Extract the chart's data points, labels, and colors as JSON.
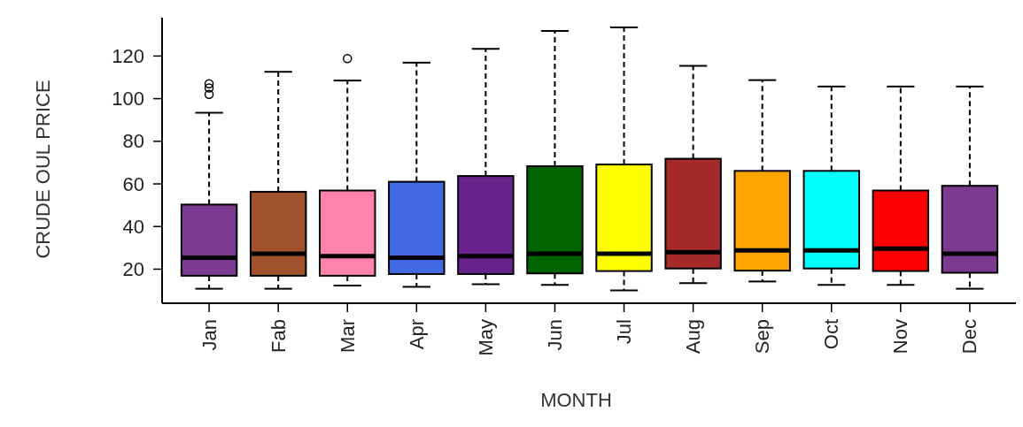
{
  "chart_data": {
    "type": "box",
    "xlabel": "MONTH",
    "ylabel": "CRUDE OUL PRICE",
    "categories": [
      "Jan",
      "Fab",
      "Mar",
      "Apr",
      "May",
      "Jun",
      "Jul",
      "Aug",
      "Sep",
      "Oct",
      "Nov",
      "Dec"
    ],
    "colors": [
      "#7b3a8f",
      "#a0522d",
      "#ff82ab",
      "#4169e1",
      "#68228b",
      "#006400",
      "#ffff00",
      "#a52a2a",
      "#ffa500",
      "#00ffff",
      "#ff0000",
      "#7b3a8f"
    ],
    "boxes": [
      {
        "low": 10.8,
        "q1": 16.9,
        "median": 25.4,
        "q3": 50.3,
        "high": 93.4,
        "outliers": [
          107,
          105,
          102
        ]
      },
      {
        "low": 10.8,
        "q1": 16.9,
        "median": 27.2,
        "q3": 56.3,
        "high": 112.6
      },
      {
        "low": 12.3,
        "q1": 16.9,
        "median": 26.1,
        "q3": 56.9,
        "high": 108.5,
        "outliers": [
          118.8
        ]
      },
      {
        "low": 11.7,
        "q1": 17.7,
        "median": 25.4,
        "q3": 61,
        "high": 116.9
      },
      {
        "low": 12.9,
        "q1": 17.7,
        "median": 26.1,
        "q3": 63.7,
        "high": 123.4
      },
      {
        "low": 12.6,
        "q1": 18,
        "median": 27.2,
        "q3": 68.3,
        "high": 131.8
      },
      {
        "low": 10,
        "q1": 19.1,
        "median": 27.2,
        "q3": 69.1,
        "high": 133.4
      },
      {
        "low": 13.4,
        "q1": 20.3,
        "median": 28,
        "q3": 71.8,
        "high": 115.4
      },
      {
        "low": 14.2,
        "q1": 19.3,
        "median": 28.8,
        "q3": 66.1,
        "high": 108.7
      },
      {
        "low": 12.6,
        "q1": 20.3,
        "median": 28.8,
        "q3": 66.1,
        "high": 105.7
      },
      {
        "low": 12.6,
        "q1": 19.1,
        "median": 29.6,
        "q3": 56.9,
        "high": 105.7
      },
      {
        "low": 10.8,
        "q1": 18.3,
        "median": 27.2,
        "q3": 59.1,
        "high": 105.7
      }
    ],
    "ylim": [
      4,
      138
    ],
    "yticks": [
      20,
      40,
      60,
      80,
      100,
      120
    ],
    "line_style": "dashed",
    "marker": "circle"
  }
}
